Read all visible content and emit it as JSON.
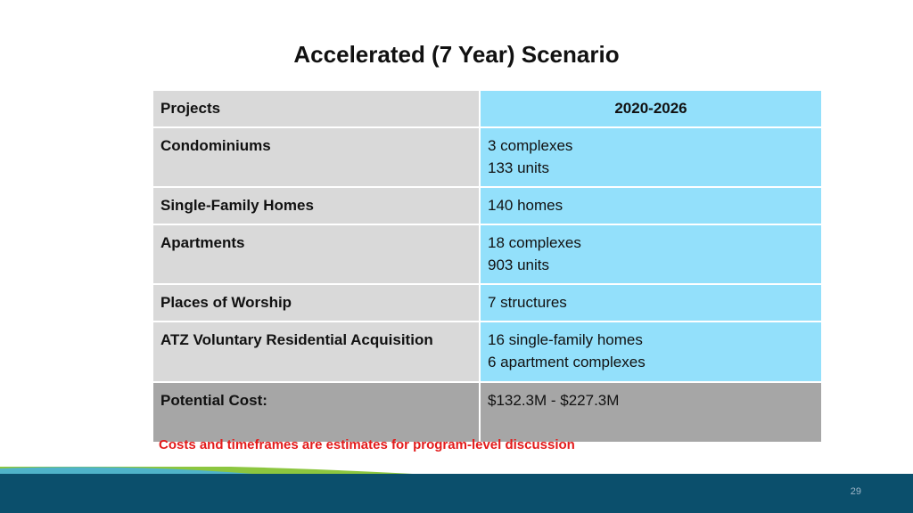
{
  "title": "Accelerated (7 Year) Scenario",
  "table": {
    "header": {
      "col1": "Projects",
      "col2": "2020-2026"
    },
    "rows": [
      {
        "label": "Condominiums",
        "lines": [
          "3 complexes",
          "133 units"
        ]
      },
      {
        "label": "Single-Family Homes",
        "lines": [
          "140 homes"
        ]
      },
      {
        "label": "Apartments",
        "lines": [
          "18 complexes",
          "903 units"
        ]
      },
      {
        "label": "Places of Worship",
        "lines": [
          "7 structures"
        ]
      },
      {
        "label": "ATZ Voluntary Residential Acquisition",
        "lines": [
          "16 single-family homes",
          "6 apartment complexes"
        ]
      }
    ],
    "cost": {
      "label": "Potential Cost:",
      "value": "$132.3M - $227.3M"
    }
  },
  "note": "Costs and timeframes are estimates for program-level discussion",
  "page_number": "29",
  "colors": {
    "label_cell": "#d9d9d9",
    "value_cell": "#93e0fb",
    "cost_row": "#a6a6a6",
    "note_text": "#e31b1b",
    "footer_navy": "#0b4f6c",
    "footer_teal": "#4fb3c9",
    "footer_green": "#8cc63f"
  }
}
